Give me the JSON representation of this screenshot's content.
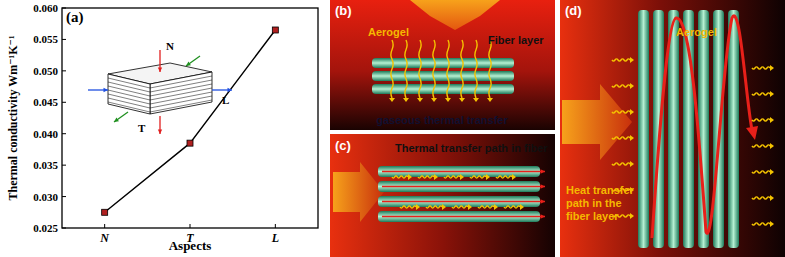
{
  "chart_data": {
    "type": "line",
    "annotations": [
      "(a)",
      "N",
      "T",
      "L"
    ],
    "x_label": "Aspects",
    "y_label": "Thermal conductivity Wm⁻¹K⁻¹",
    "categories": [
      "N",
      "T",
      "L"
    ],
    "values": [
      0.0275,
      0.0385,
      0.0565
    ],
    "color": "#000000",
    "marker": "square",
    "ylim": [
      0.025,
      0.06
    ],
    "yticks": [
      0.025,
      {
        "value": 0.03,
        "label": "0.030"
      },
      0.035,
      {
        "value": 0.04,
        "label": "0.040"
      },
      0.045,
      {
        "value": 0.05,
        "label": "0.050"
      },
      0.055,
      {
        "value": 0.06,
        "label": "0.060"
      }
    ],
    "grid": false
  },
  "diagrams": [
    {
      "label": "(b)",
      "texts": [
        "Aerogel",
        "Fiber layer",
        "gaseous thermal transfer"
      ]
    },
    {
      "label": "(c)",
      "texts": [
        "Thermal transfer path in fiber"
      ]
    },
    {
      "label": "(d)",
      "texts": [
        "Aerogel",
        "Heat transfer",
        "path in the",
        "fiber layer"
      ]
    }
  ]
}
